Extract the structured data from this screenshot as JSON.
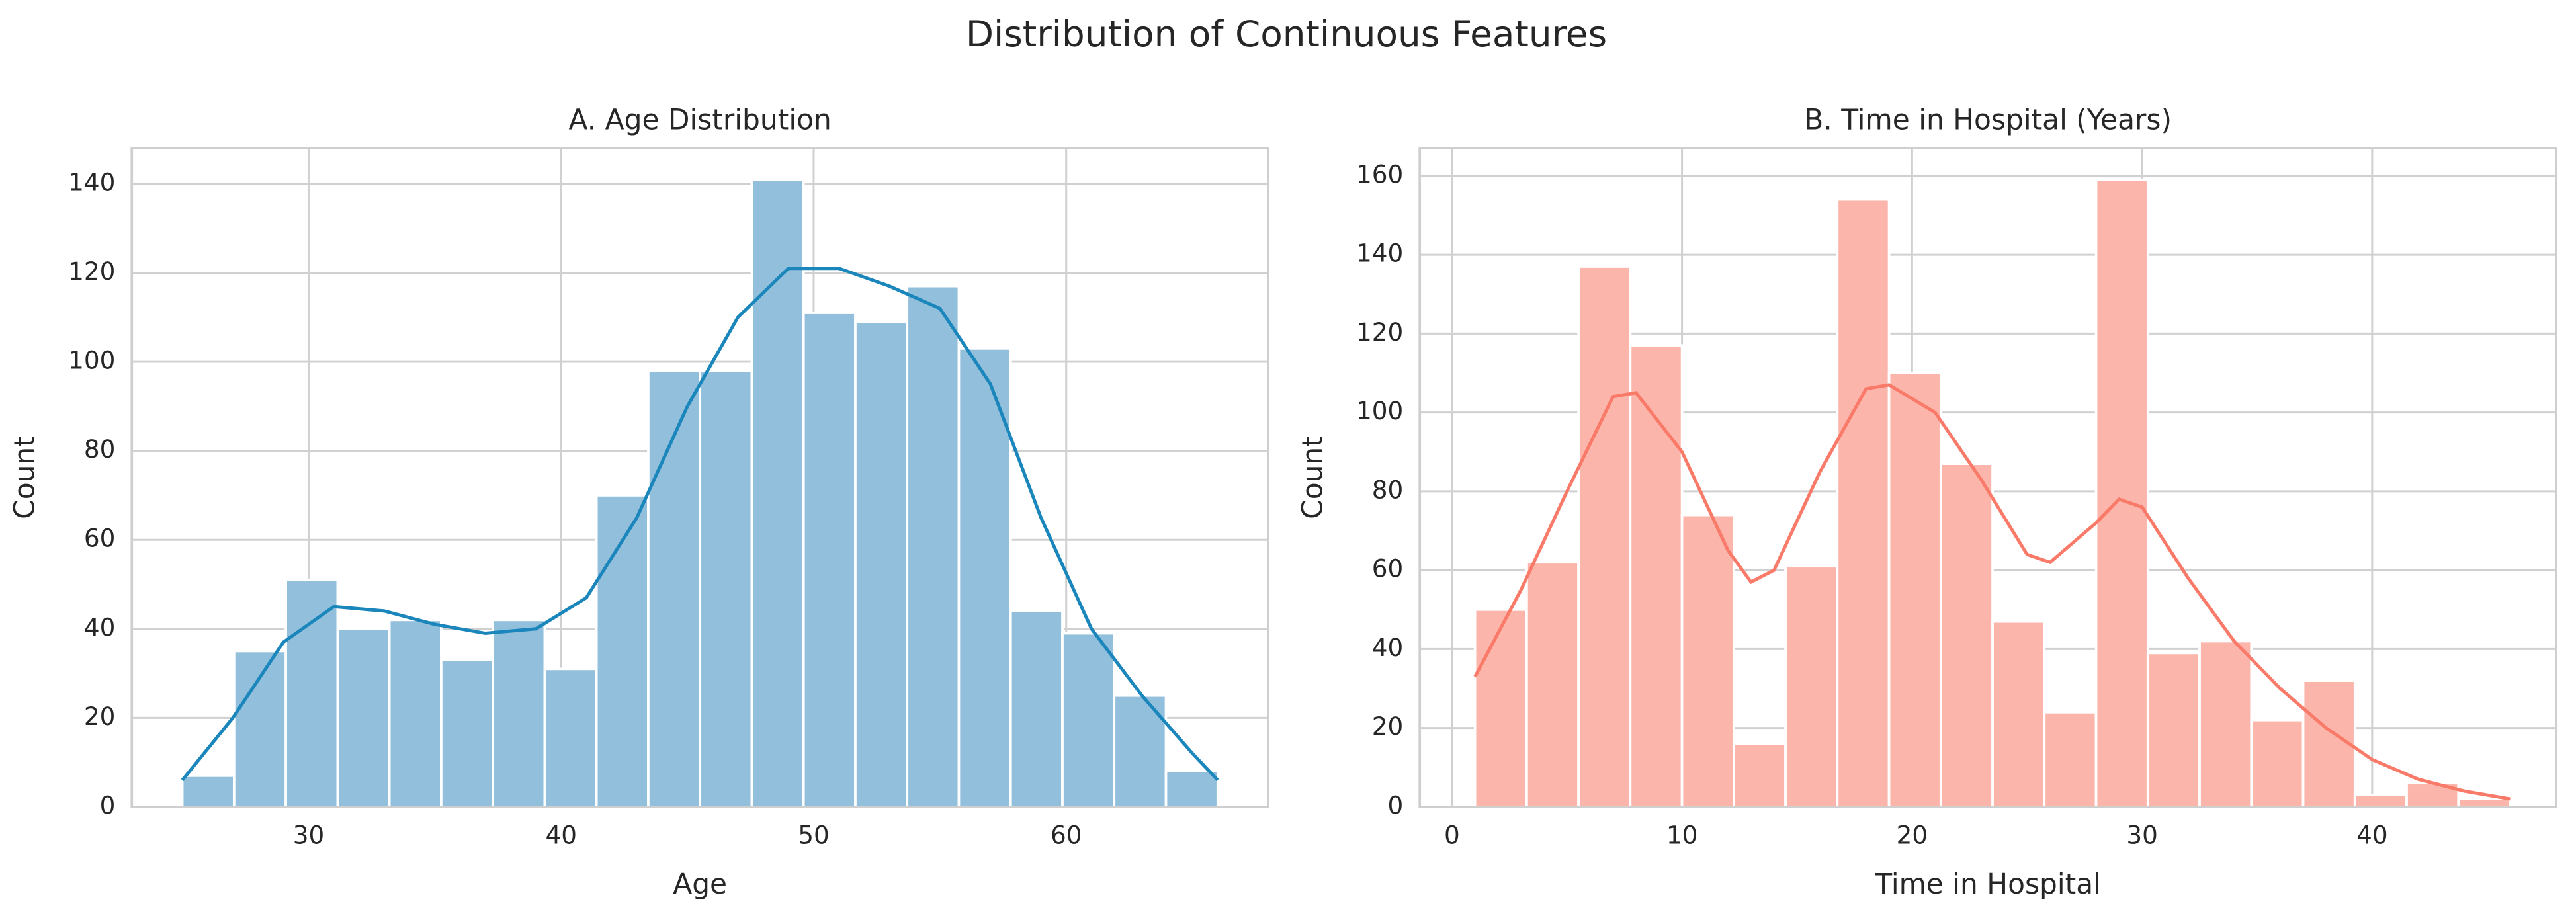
{
  "title": "Distribution of Continuous Features",
  "chart_data": [
    {
      "type": "histogram",
      "title": "A. Age Distribution",
      "xlabel": "Age",
      "ylabel": "Count",
      "bins": [
        25,
        27.05,
        29.1,
        31.15,
        33.2,
        35.25,
        37.3,
        39.35,
        41.4,
        43.45,
        45.5,
        47.55,
        49.6,
        51.65,
        53.7,
        55.75,
        57.8,
        59.85,
        61.9,
        63.95,
        66
      ],
      "values": [
        7,
        35,
        51,
        40,
        42,
        33,
        42,
        31,
        70,
        98,
        98,
        141,
        111,
        109,
        117,
        103,
        44,
        39,
        25,
        8
      ],
      "color": "#92bfdb",
      "kde": {
        "color": "#1b86bb",
        "x": [
          25,
          27,
          29,
          31,
          33,
          35,
          37,
          39,
          41,
          43,
          45,
          47,
          49,
          51,
          53,
          55,
          57,
          59,
          61,
          63,
          65,
          66
        ],
        "values": [
          6,
          20,
          37,
          45,
          44,
          41,
          39,
          40,
          47,
          65,
          90,
          110,
          121,
          121,
          117,
          112,
          95,
          65,
          40,
          25,
          12,
          6
        ]
      },
      "xlim": [
        23,
        68
      ],
      "xticks": [
        30,
        40,
        50,
        60
      ],
      "ylim": [
        0,
        148
      ],
      "yticks": [
        0,
        20,
        40,
        60,
        80,
        100,
        120,
        140
      ],
      "grid": true
    },
    {
      "type": "histogram",
      "title": "B. Time in Hospital (Years)",
      "xlabel": "Time in Hospital",
      "ylabel": "Count",
      "bins": [
        1,
        3.25,
        5.5,
        7.75,
        10,
        12.25,
        14.5,
        16.75,
        19,
        21.25,
        23.5,
        25.75,
        28,
        30.25,
        32.5,
        34.75,
        37,
        39.25,
        41.5,
        43.75,
        46
      ],
      "values": [
        50,
        62,
        137,
        117,
        74,
        16,
        61,
        154,
        110,
        87,
        47,
        24,
        159,
        39,
        42,
        22,
        32,
        3,
        6,
        2
      ],
      "color": "#fbb5aa",
      "kde": {
        "color": "#f97a68",
        "x": [
          1,
          3,
          5,
          7,
          8,
          10,
          12,
          13,
          14,
          16,
          18,
          19,
          21,
          23,
          25,
          26,
          28,
          29,
          30,
          32,
          34,
          36,
          38,
          40,
          42,
          44,
          46
        ],
        "values": [
          33,
          55,
          80,
          104,
          105,
          90,
          65,
          57,
          60,
          85,
          106,
          107,
          100,
          83,
          64,
          62,
          72,
          78,
          76,
          58,
          42,
          30,
          20,
          12,
          7,
          4,
          2
        ]
      },
      "xlim": [
        -1.4,
        48
      ],
      "xticks": [
        0,
        10,
        20,
        30,
        40
      ],
      "ylim": [
        0,
        167
      ],
      "yticks": [
        0,
        20,
        40,
        60,
        80,
        100,
        120,
        140,
        160
      ],
      "grid": true
    }
  ]
}
